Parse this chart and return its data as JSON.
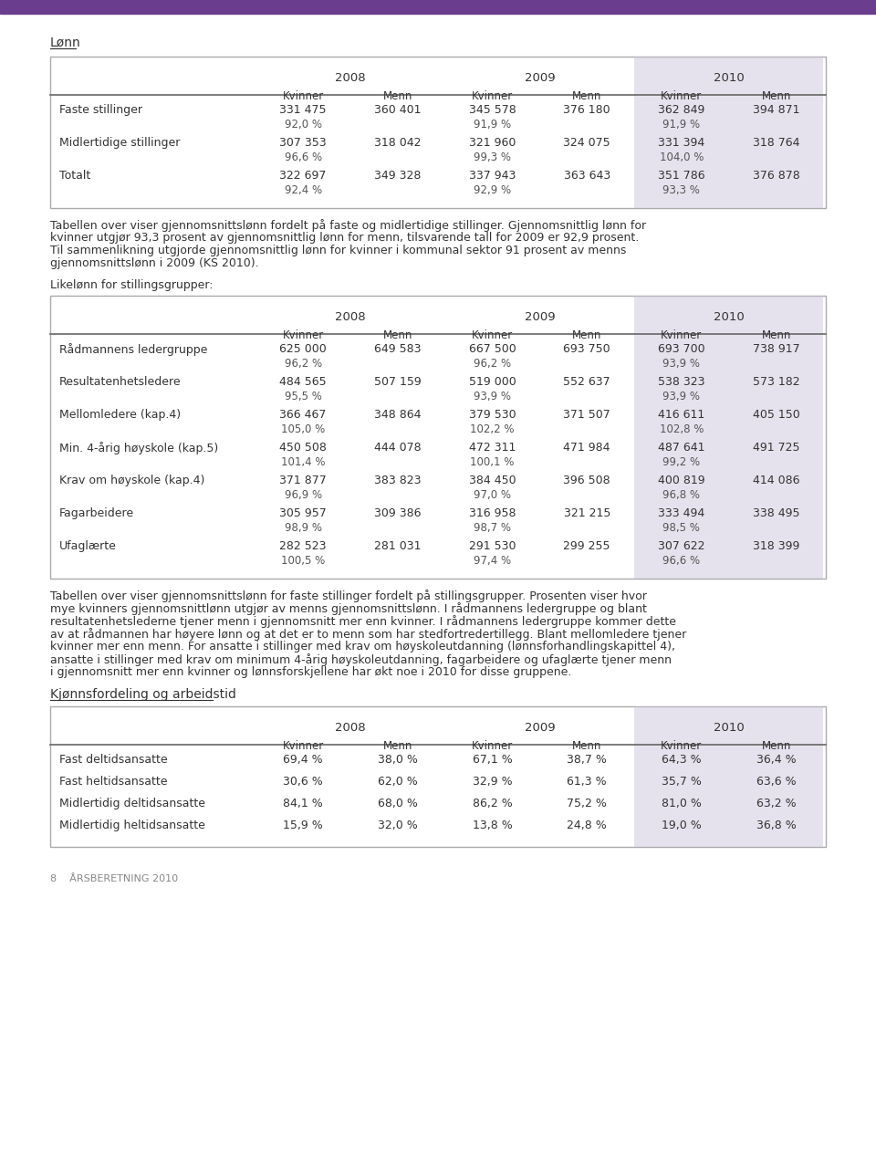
{
  "page_bg": "#ffffff",
  "text_color": "#333333",
  "header_bg": "#c8c0d8",
  "border_color": "#888888",
  "purple_top_bar": "#6a3d8f",
  "section1_title": "Lønn",
  "table1_headers_year": [
    "2008",
    "2009",
    "2010"
  ],
  "table1_headers_sub": [
    "Kvinner",
    "Menn",
    "Kvinner",
    "Menn",
    "Kvinner",
    "Menn"
  ],
  "table1_rows": [
    {
      "label": "Faste stillinger",
      "values": [
        "331 475",
        "360 401",
        "345 578",
        "376 180",
        "362 849",
        "394 871"
      ],
      "pct": [
        "92,0 %",
        "",
        "91,9 %",
        "",
        "91,9 %",
        ""
      ]
    },
    {
      "label": "Midlertidige stillinger",
      "values": [
        "307 353",
        "318 042",
        "321 960",
        "324 075",
        "331 394",
        "318 764"
      ],
      "pct": [
        "96,6 %",
        "",
        "99,3 %",
        "",
        "104,0 %",
        ""
      ]
    },
    {
      "label": "Totalt",
      "values": [
        "322 697",
        "349 328",
        "337 943",
        "363 643",
        "351 786",
        "376 878"
      ],
      "pct": [
        "92,4 %",
        "",
        "92,9 %",
        "",
        "93,3 %",
        ""
      ]
    }
  ],
  "table1_paragraph": "Tabellen over viser gjennomsnittslønn fordelt på faste og midlertidige stillinger. Gjennomsnittlig lønn for\nkvinner utgjør 93,3 prosent av gjennomsnittlig lønn for menn, tilsvarende tall for 2009 er 92,9 prosent.\nTil sammenlikning utgjorde gjennomsnittlig lønn for kvinner i kommunal sektor 91 prosent av menns\ngjennomsnittslønn i 2009 (KS 2010).",
  "section2_title": "Likelønn for stillingsgrupper:",
  "table2_rows": [
    {
      "label": "Rådmannens ledergruppe",
      "values": [
        "625 000",
        "649 583",
        "667 500",
        "693 750",
        "693 700",
        "738 917"
      ],
      "pct": [
        "96,2 %",
        "",
        "96,2 %",
        "",
        "93,9 %",
        ""
      ]
    },
    {
      "label": "Resultatenhetsledere",
      "values": [
        "484 565",
        "507 159",
        "519 000",
        "552 637",
        "538 323",
        "573 182"
      ],
      "pct": [
        "95,5 %",
        "",
        "93,9 %",
        "",
        "93,9 %",
        ""
      ]
    },
    {
      "label": "Mellomledere (kap.4)",
      "values": [
        "366 467",
        "348 864",
        "379 530",
        "371 507",
        "416 611",
        "405 150"
      ],
      "pct": [
        "105,0 %",
        "",
        "102,2 %",
        "",
        "102,8 %",
        ""
      ]
    },
    {
      "label": "Min. 4-årig høyskole (kap.5)",
      "values": [
        "450 508",
        "444 078",
        "472 311",
        "471 984",
        "487 641",
        "491 725"
      ],
      "pct": [
        "101,4 %",
        "",
        "100,1 %",
        "",
        "99,2 %",
        ""
      ]
    },
    {
      "label": "Krav om høyskole (kap.4)",
      "values": [
        "371 877",
        "383 823",
        "384 450",
        "396 508",
        "400 819",
        "414 086"
      ],
      "pct": [
        "96,9 %",
        "",
        "97,0 %",
        "",
        "96,8 %",
        ""
      ]
    },
    {
      "label": "Fagarbeidere",
      "values": [
        "305 957",
        "309 386",
        "316 958",
        "321 215",
        "333 494",
        "338 495"
      ],
      "pct": [
        "98,9 %",
        "",
        "98,7 %",
        "",
        "98,5 %",
        ""
      ]
    },
    {
      "label": "Ufaglærte",
      "values": [
        "282 523",
        "281 031",
        "291 530",
        "299 255",
        "307 622",
        "318 399"
      ],
      "pct": [
        "100,5 %",
        "",
        "97,4 %",
        "",
        "96,6 %",
        ""
      ]
    }
  ],
  "table2_paragraph": "Tabellen over viser gjennomsnittslønn for faste stillinger fordelt på stillingsgrupper. Prosenten viser hvor\nmye kvinners gjennomsnittlønn utgjør av menns gjennomsnittslønn. I rådmannens ledergruppe og blant\nresultatenhetslederne tjener menn i gjennomsnitt mer enn kvinner. I rådmannens ledergruppe kommer dette\nav at rådmannen har høyere lønn og at det er to menn som har stedfortredertillegg. Blant mellomledere tjener\nkvinner mer enn menn. For ansatte i stillinger med krav om høyskoleutdanning (lønnsforhandlingskapittel 4),\nansatte i stillinger med krav om minimum 4-årig høyskoleutdanning, fagarbeidere og ufaglærte tjener menn\ni gjennomsnitt mer enn kvinner og lønnsforskjellene har økt noe i 2010 for disse gruppene.",
  "section3_title": "Kjønnsfordeling og arbeidstid",
  "table3_rows": [
    {
      "label": "Fast deltidsansatte",
      "values": [
        "69,4 %",
        "38,0 %",
        "67,1 %",
        "38,7 %",
        "64,3 %",
        "36,4 %"
      ]
    },
    {
      "label": "Fast heltidsansatte",
      "values": [
        "30,6 %",
        "62,0 %",
        "32,9 %",
        "61,3 %",
        "35,7 %",
        "63,6 %"
      ]
    },
    {
      "label": "Midlertidig deltidsansatte",
      "values": [
        "84,1 %",
        "68,0 %",
        "86,2 %",
        "75,2 %",
        "81,0 %",
        "63,2 %"
      ]
    },
    {
      "label": "Midlertidig heltidsansatte",
      "values": [
        "15,9 %",
        "32,0 %",
        "13,8 %",
        "24,8 %",
        "19,0 %",
        "36,8 %"
      ]
    }
  ],
  "footer_text": "8    ÅRSBERETNING 2010"
}
